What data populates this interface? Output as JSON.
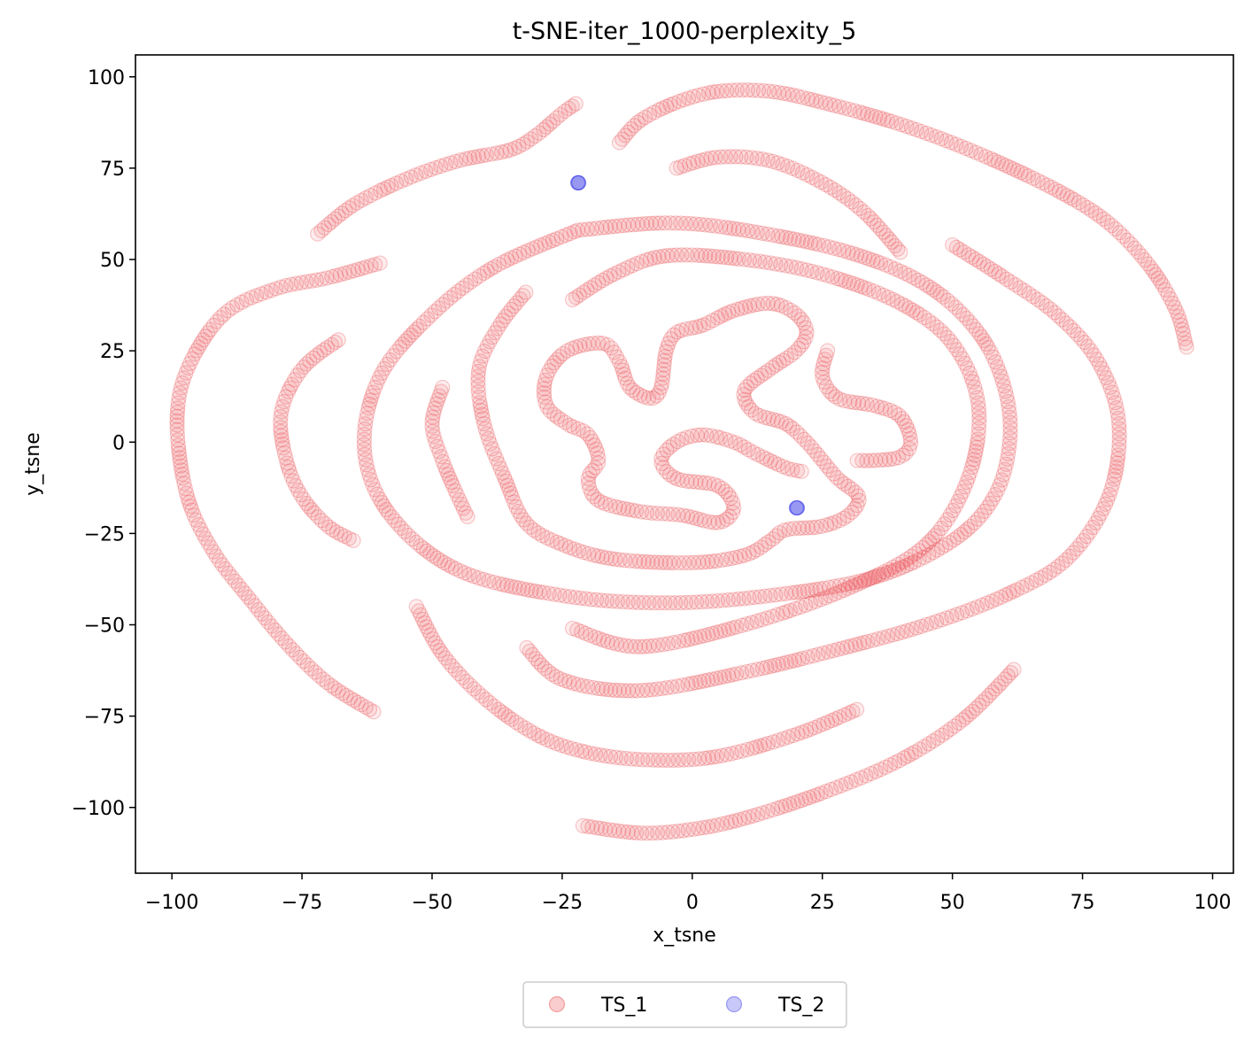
{
  "chart_data": {
    "type": "scatter",
    "title": "t-SNE-iter_1000-perplexity_5",
    "xlabel": "x_tsne",
    "ylabel": "y_tsne",
    "xlim": [
      -107,
      104
    ],
    "ylim": [
      -118,
      106
    ],
    "xticks": [
      -100,
      -75,
      -50,
      -25,
      0,
      25,
      50,
      75,
      100
    ],
    "yticks": [
      -100,
      -75,
      -50,
      -25,
      0,
      25,
      50,
      75,
      100
    ],
    "xtick_labels": [
      "−100",
      "−75",
      "−50",
      "−25",
      "0",
      "25",
      "50",
      "75",
      "100"
    ],
    "ytick_labels": [
      "−100",
      "−75",
      "−50",
      "−25",
      "0",
      "25",
      "50",
      "75",
      "100"
    ],
    "grid": false,
    "legend_placement": "bottom-center",
    "series": [
      {
        "name": "TS_1",
        "color": "#e8474a",
        "curves": [
          [
            [
              -72,
              57
            ],
            [
              -65,
              65
            ],
            [
              -55,
              72
            ],
            [
              -45,
              77
            ],
            [
              -35,
              80
            ],
            [
              -30,
              84
            ],
            [
              -25,
              90
            ],
            [
              -22,
              93
            ]
          ],
          [
            [
              -14,
              82
            ],
            [
              -10,
              88
            ],
            [
              -3,
              93
            ],
            [
              5,
              96
            ],
            [
              15,
              96
            ],
            [
              25,
              93
            ],
            [
              40,
              87
            ],
            [
              55,
              79
            ],
            [
              70,
              69
            ],
            [
              80,
              60
            ],
            [
              88,
              48
            ],
            [
              93,
              36
            ],
            [
              95,
              26
            ]
          ],
          [
            [
              -3,
              75
            ],
            [
              5,
              78
            ],
            [
              15,
              77
            ],
            [
              25,
              71
            ],
            [
              33,
              63
            ],
            [
              40,
              52
            ]
          ],
          [
            [
              -60,
              49
            ],
            [
              -70,
              45
            ],
            [
              -80,
              42
            ],
            [
              -90,
              35
            ],
            [
              -97,
              20
            ],
            [
              -99,
              5
            ],
            [
              -97,
              -15
            ],
            [
              -92,
              -30
            ],
            [
              -85,
              -43
            ],
            [
              -78,
              -55
            ],
            [
              -70,
              -66
            ],
            [
              -61,
              -74
            ]
          ],
          [
            [
              -68,
              28
            ],
            [
              -75,
              20
            ],
            [
              -79,
              8
            ],
            [
              -78,
              -5
            ],
            [
              -75,
              -15
            ],
            [
              -70,
              -23
            ],
            [
              -65,
              -27
            ]
          ],
          [
            [
              -22,
              58
            ],
            [
              -5,
              60
            ],
            [
              10,
              58
            ],
            [
              30,
              52
            ],
            [
              45,
              43
            ],
            [
              55,
              30
            ],
            [
              60,
              15
            ],
            [
              61,
              0
            ],
            [
              58,
              -15
            ],
            [
              50,
              -27
            ],
            [
              35,
              -37
            ],
            [
              15,
              -42
            ],
            [
              -5,
              -44
            ],
            [
              -25,
              -42
            ],
            [
              -45,
              -35
            ],
            [
              -58,
              -20
            ],
            [
              -63,
              -2
            ],
            [
              -60,
              18
            ],
            [
              -50,
              35
            ],
            [
              -38,
              48
            ],
            [
              -22,
              58
            ]
          ],
          [
            [
              -23,
              39
            ],
            [
              -15,
              46
            ],
            [
              -5,
              51
            ],
            [
              10,
              50
            ],
            [
              25,
              46
            ],
            [
              40,
              38
            ],
            [
              50,
              27
            ],
            [
              55,
              10
            ],
            [
              53,
              -10
            ],
            [
              45,
              -28
            ],
            [
              30,
              -40
            ],
            [
              10,
              -50
            ],
            [
              -10,
              -56
            ],
            [
              -23,
              -51
            ]
          ],
          [
            [
              50,
              54
            ],
            [
              60,
              45
            ],
            [
              70,
              35
            ],
            [
              78,
              22
            ],
            [
              82,
              5
            ],
            [
              80,
              -15
            ],
            [
              72,
              -32
            ],
            [
              60,
              -42
            ],
            [
              45,
              -50
            ],
            [
              30,
              -56
            ],
            [
              10,
              -63
            ],
            [
              -10,
              -68
            ],
            [
              -25,
              -65
            ],
            [
              -32,
              -56
            ]
          ],
          [
            [
              -53,
              -45
            ],
            [
              -48,
              -58
            ],
            [
              -40,
              -70
            ],
            [
              -30,
              -80
            ],
            [
              -20,
              -85
            ],
            [
              -8,
              -87
            ],
            [
              5,
              -86
            ],
            [
              20,
              -80
            ],
            [
              32,
              -73
            ]
          ],
          [
            [
              -21,
              -105
            ],
            [
              -10,
              -107
            ],
            [
              0,
              -106
            ],
            [
              10,
              -103
            ],
            [
              25,
              -96
            ],
            [
              40,
              -87
            ],
            [
              52,
              -76
            ],
            [
              62,
              -62
            ]
          ],
          [
            [
              -48,
              15
            ],
            [
              -50,
              5
            ],
            [
              -48,
              -5
            ],
            [
              -45,
              -15
            ],
            [
              -43,
              -21
            ]
          ],
          [
            [
              -32,
              41
            ],
            [
              -37,
              32
            ],
            [
              -41,
              20
            ],
            [
              -40,
              5
            ],
            [
              -36,
              -10
            ],
            [
              -32,
              -22
            ],
            [
              -25,
              -28
            ],
            [
              -15,
              -32
            ],
            [
              0,
              -33
            ],
            [
              10,
              -31
            ],
            [
              15,
              -27
            ],
            [
              18,
              -24
            ],
            [
              25,
              -23
            ],
            [
              30,
              -20
            ],
            [
              32,
              -15
            ],
            [
              28,
              -10
            ],
            [
              25,
              -5
            ],
            [
              22,
              0
            ],
            [
              18,
              5
            ],
            [
              12,
              8
            ],
            [
              10,
              14
            ],
            [
              15,
              20
            ],
            [
              20,
              25
            ],
            [
              22,
              30
            ],
            [
              20,
              35
            ],
            [
              15,
              38
            ],
            [
              8,
              36
            ],
            [
              2,
              32
            ],
            [
              -3,
              30
            ],
            [
              -5,
              25
            ],
            [
              -6,
              15
            ],
            [
              -8,
              12
            ],
            [
              -12,
              15
            ],
            [
              -14,
              22
            ],
            [
              -17,
              27
            ],
            [
              -24,
              25
            ],
            [
              -28,
              18
            ],
            [
              -28,
              10
            ],
            [
              -24,
              5
            ],
            [
              -20,
              2
            ],
            [
              -18,
              -5
            ],
            [
              -20,
              -10
            ],
            [
              -18,
              -16
            ],
            [
              -10,
              -19
            ],
            [
              -2,
              -20
            ],
            [
              5,
              -22
            ],
            [
              8,
              -18
            ],
            [
              5,
              -12
            ],
            [
              -3,
              -10
            ],
            [
              -6,
              -5
            ],
            [
              -3,
              0
            ],
            [
              2,
              2
            ],
            [
              8,
              0
            ],
            [
              12,
              -3
            ],
            [
              18,
              -7
            ],
            [
              21,
              -8
            ]
          ],
          [
            [
              26,
              25
            ],
            [
              25,
              18
            ],
            [
              28,
              12
            ],
            [
              35,
              10
            ],
            [
              40,
              7
            ],
            [
              42,
              0
            ],
            [
              40,
              -4
            ],
            [
              35,
              -5
            ],
            [
              31,
              -5
            ]
          ]
        ]
      },
      {
        "name": "TS_2",
        "color": "#3a3ae8",
        "points": [
          [
            -22,
            71
          ],
          [
            20,
            -18
          ]
        ]
      }
    ]
  }
}
